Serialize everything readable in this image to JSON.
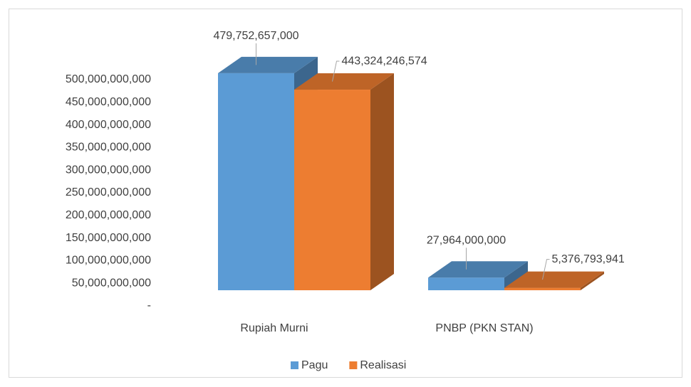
{
  "chart_data": {
    "type": "bar3d",
    "categories": [
      "Rupiah Murni",
      "PNBP (PKN STAN)"
    ],
    "series": [
      {
        "name": "Pagu",
        "color": "#5b9bd5",
        "values": [
          479752657000,
          27964000000
        ],
        "value_labels": [
          "479,752,657,000",
          "27,964,000,000"
        ]
      },
      {
        "name": "Realisasi",
        "color": "#ed7d31",
        "values": [
          443324246574,
          5376793941
        ],
        "value_labels": [
          "443,324,246,574",
          "5,376,793,941"
        ]
      }
    ],
    "ylim": [
      0,
      500000000000
    ],
    "yticks": [
      {
        "value": 0,
        "label": "-"
      },
      {
        "value": 50000000000,
        "label": "50,000,000,000"
      },
      {
        "value": 100000000000,
        "label": "100,000,000,000"
      },
      {
        "value": 150000000000,
        "label": "150,000,000,000"
      },
      {
        "value": 200000000000,
        "label": "200,000,000,000"
      },
      {
        "value": 250000000000,
        "label": "250,000,000,000"
      },
      {
        "value": 300000000000,
        "label": "300,000,000,000"
      },
      {
        "value": 350000000000,
        "label": "350,000,000,000"
      },
      {
        "value": 400000000000,
        "label": "400,000,000,000"
      },
      {
        "value": 450000000000,
        "label": "450,000,000,000"
      },
      {
        "value": 500000000000,
        "label": "500,000,000,000"
      }
    ],
    "legend": "bottom"
  }
}
